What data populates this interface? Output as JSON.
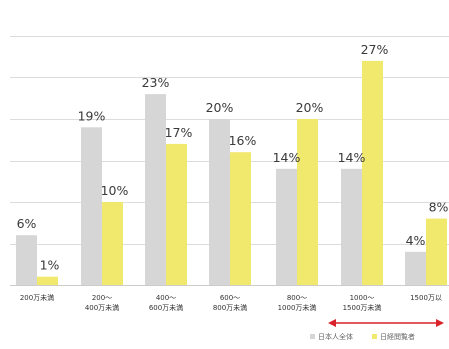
{
  "chart_data": {
    "type": "bar",
    "title": "",
    "xlabel": "",
    "ylabel": "",
    "ylim": [
      0,
      30
    ],
    "grid": true,
    "categories": [
      [
        "200万未満"
      ],
      [
        "200〜",
        "400万未満"
      ],
      [
        "400〜",
        "600万未満"
      ],
      [
        "600〜",
        "800万未満"
      ],
      [
        "800〜",
        "1000万未満"
      ],
      [
        "1000〜",
        "1500万未満"
      ],
      [
        "1500万以"
      ]
    ],
    "series": [
      {
        "name": "日本人全体",
        "color": "#d6d6d6",
        "values": [
          6,
          19,
          23,
          20,
          14,
          14,
          4
        ],
        "labels": [
          "6%",
          "19%",
          "23%",
          "20%",
          "14%",
          "14%",
          "4%"
        ]
      },
      {
        "name": "日経閲覧者",
        "color": "#f1e86e",
        "values": [
          1,
          10,
          17,
          16,
          20,
          27,
          8
        ],
        "labels": [
          "1%",
          "10%",
          "17%",
          "16%",
          "20%",
          "27%",
          "8%"
        ]
      }
    ],
    "legend_position": "bottom-right",
    "highlight_arrow": {
      "from_category": 5,
      "to_category": 6,
      "color": "#d9232a"
    }
  }
}
